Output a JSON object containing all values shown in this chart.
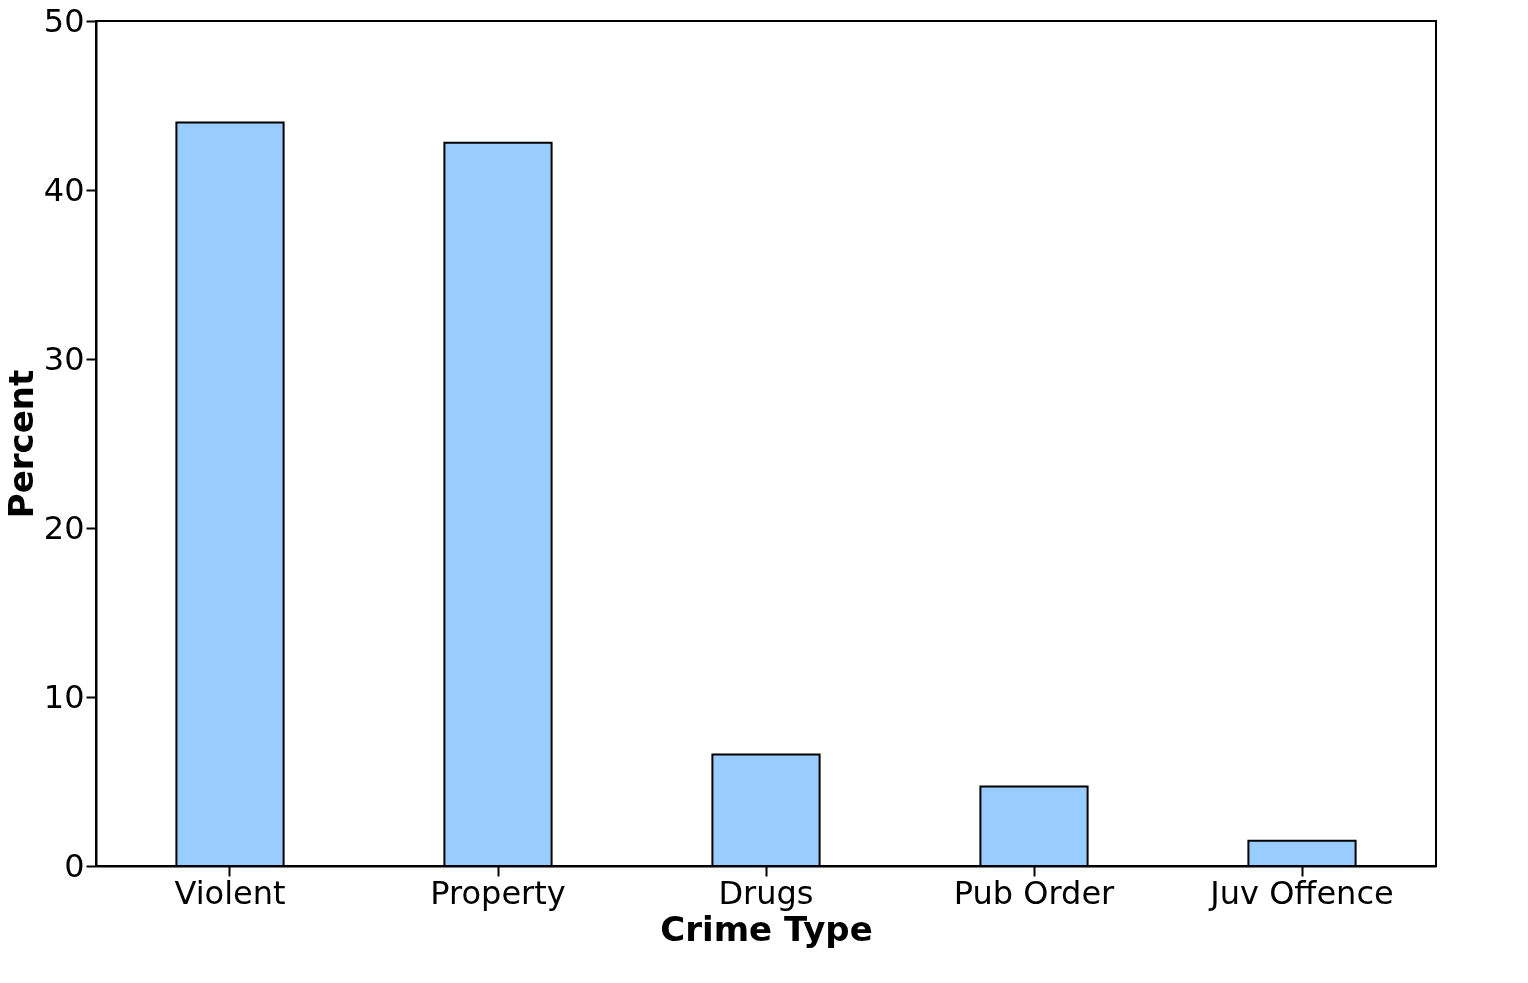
{
  "chart_data": {
    "type": "bar",
    "xlabel": "Crime Type",
    "ylabel": "Percent",
    "categories": [
      "Violent",
      "Property",
      "Drugs",
      "Pub Order",
      "Juv Offence"
    ],
    "values": [
      44.0,
      42.8,
      6.6,
      4.7,
      1.5
    ],
    "color": "#99ccff",
    "ylim": [
      0,
      50
    ],
    "yticks": [
      0,
      10,
      20,
      30,
      40,
      50
    ],
    "grid": false
  }
}
